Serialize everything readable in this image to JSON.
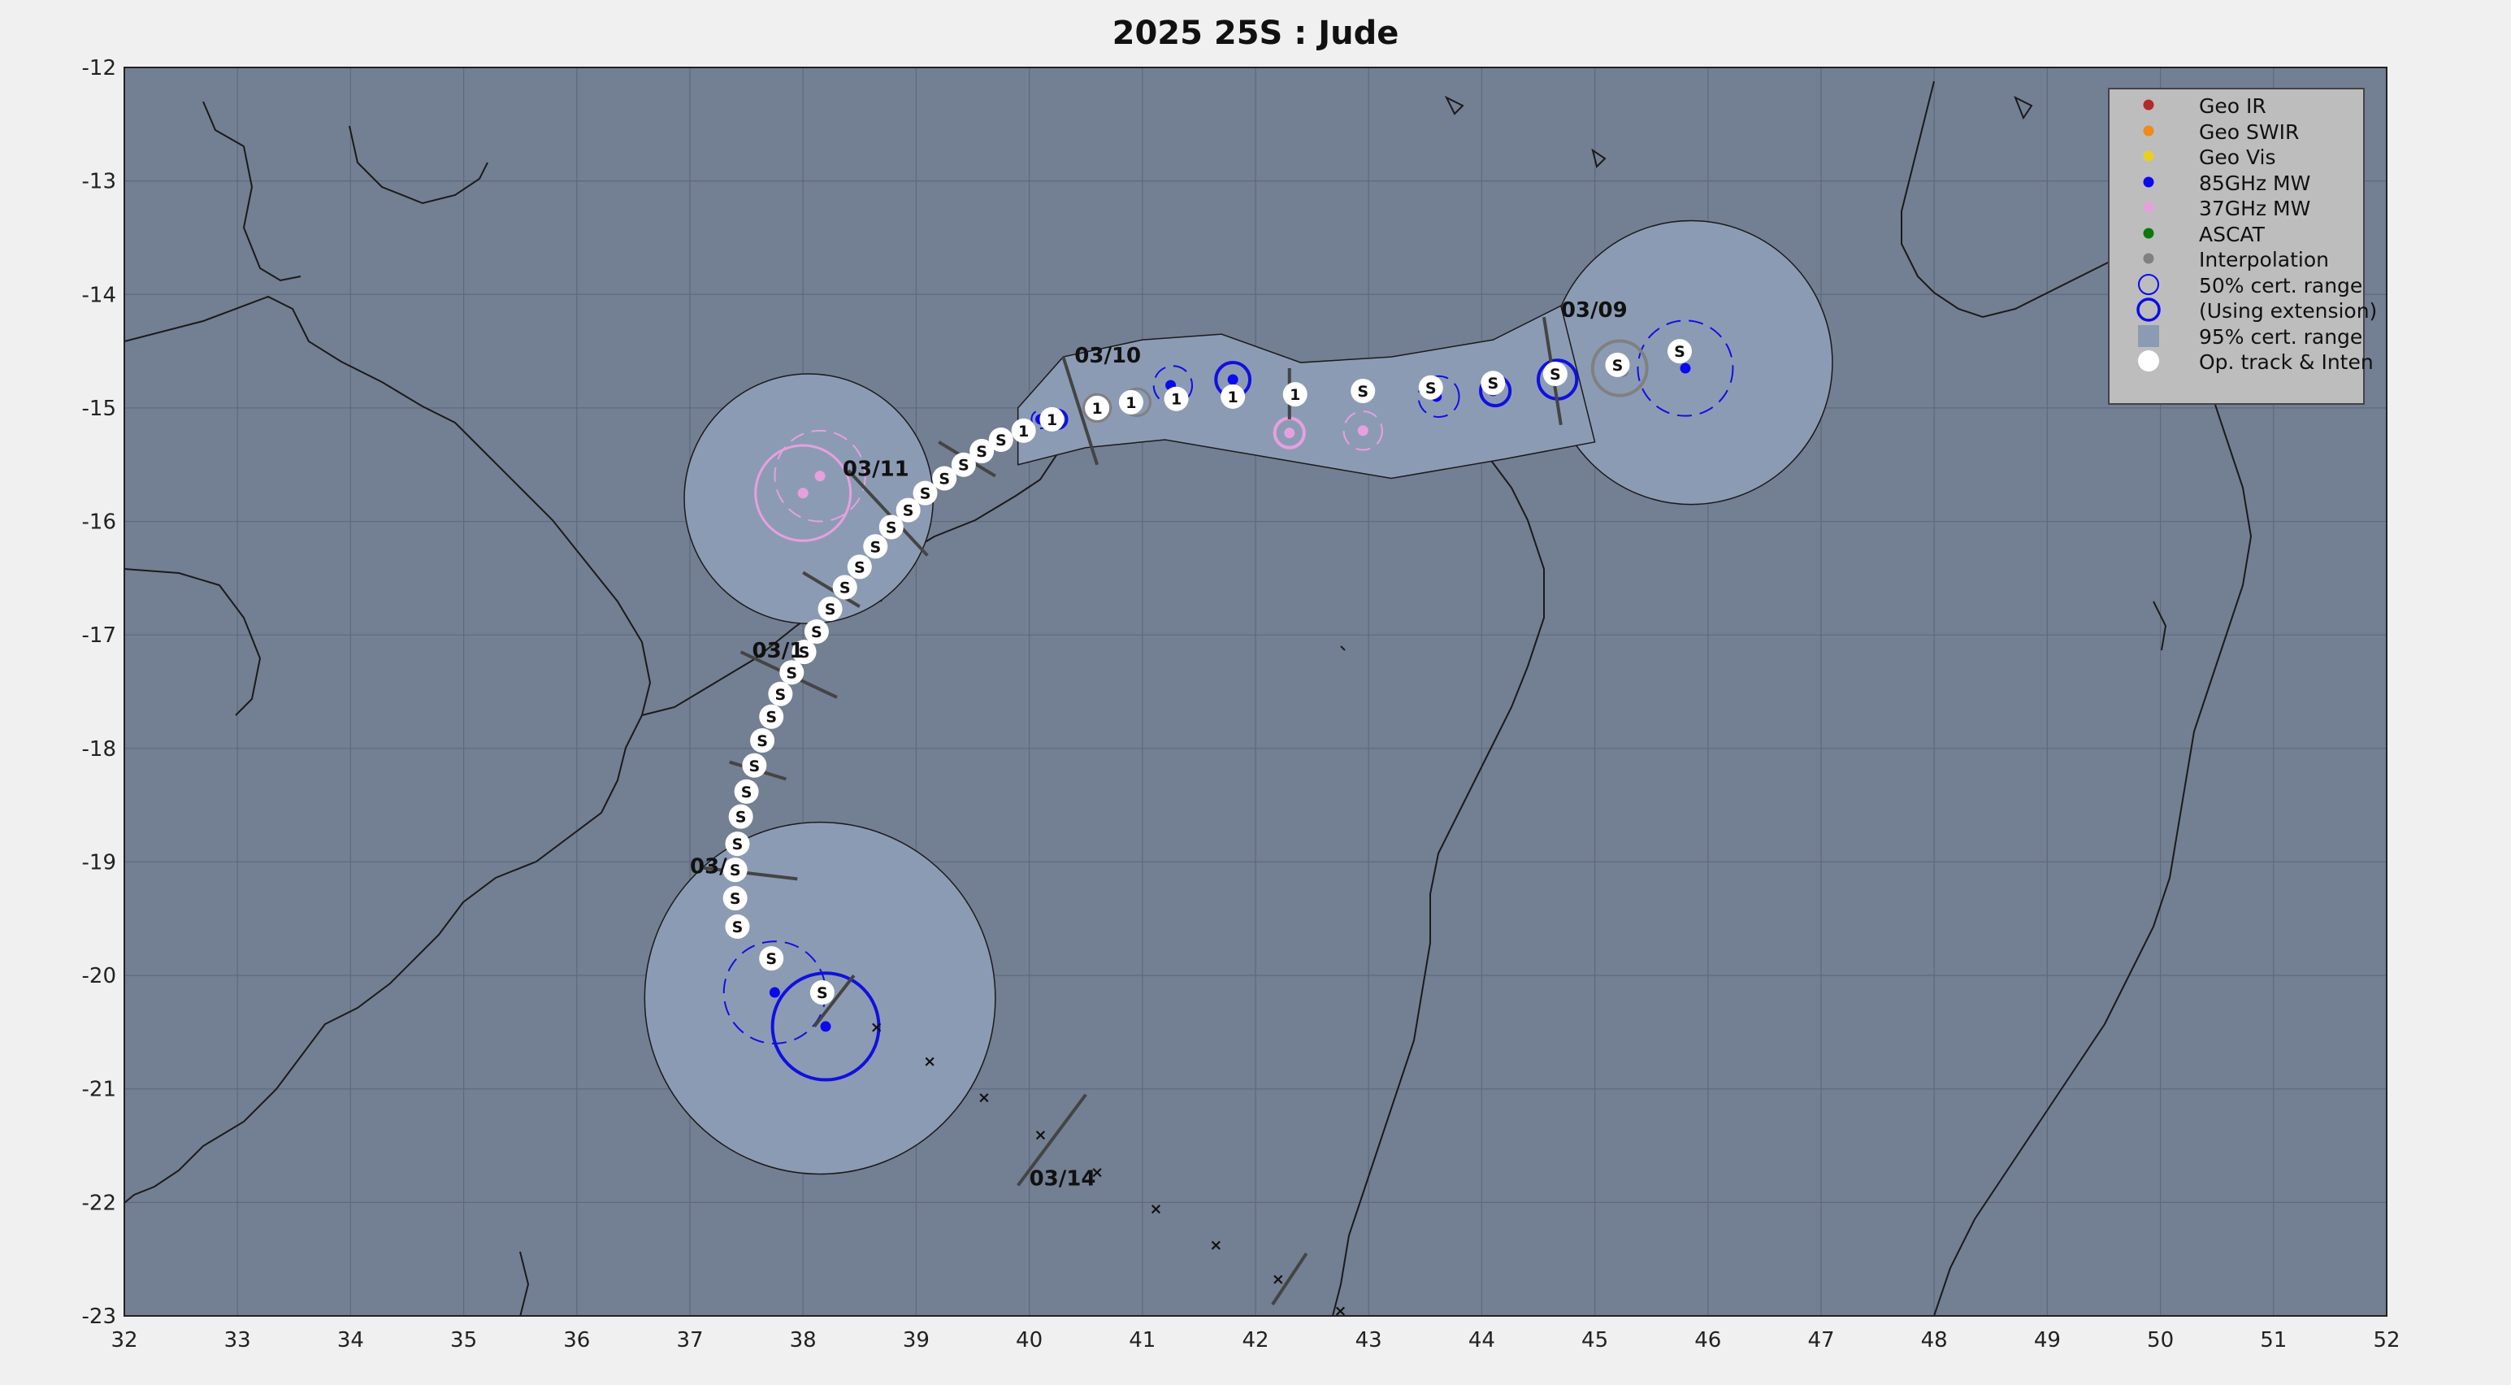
{
  "title": "2025  25S :  Jude",
  "map": {
    "lon_range": [
      32,
      52
    ],
    "lat_range": [
      -23,
      -12
    ],
    "lon_ticks": [
      "32",
      "33",
      "34",
      "35",
      "36",
      "37",
      "38",
      "39",
      "40",
      "41",
      "42",
      "43",
      "44",
      "45",
      "46",
      "47",
      "48",
      "49",
      "50",
      "51",
      "52"
    ],
    "lat_ticks": [
      "-12",
      "-13",
      "-14",
      "-15",
      "-16",
      "-17",
      "-18",
      "-19",
      "-20",
      "-21",
      "-22",
      "-23"
    ],
    "ocean_color": "#737f92",
    "cert95_color": "#8c9bb4"
  },
  "date_labels": [
    {
      "text": "03/09",
      "lon": 44.7,
      "lat": -14.2
    },
    {
      "text": "03/10",
      "lon": 40.4,
      "lat": -14.6
    },
    {
      "text": "03/11",
      "lon": 38.35,
      "lat": -15.6
    },
    {
      "text": "03/1",
      "lon": 37.55,
      "lat": -17.2
    },
    {
      "text": "03/",
      "lon": 37.0,
      "lat": -19.1
    },
    {
      "text": "03/14",
      "lon": 40.0,
      "lat": -21.85
    }
  ],
  "track": [
    {
      "lon": 45.75,
      "lat": -14.5,
      "s": "S"
    },
    {
      "lon": 45.2,
      "lat": -14.62,
      "s": "S"
    },
    {
      "lon": 44.65,
      "lat": -14.7,
      "s": "S"
    },
    {
      "lon": 44.1,
      "lat": -14.78,
      "s": "S"
    },
    {
      "lon": 43.55,
      "lat": -14.82,
      "s": "S"
    },
    {
      "lon": 42.95,
      "lat": -14.85,
      "s": "S"
    },
    {
      "lon": 42.35,
      "lat": -14.88,
      "s": "1"
    },
    {
      "lon": 41.8,
      "lat": -14.9,
      "s": "1"
    },
    {
      "lon": 41.3,
      "lat": -14.92,
      "s": "1"
    },
    {
      "lon": 40.9,
      "lat": -14.95,
      "s": "1"
    },
    {
      "lon": 40.6,
      "lat": -15.0,
      "s": "1"
    },
    {
      "lon": 40.2,
      "lat": -15.1,
      "s": "1"
    },
    {
      "lon": 39.95,
      "lat": -15.2,
      "s": "1"
    },
    {
      "lon": 39.75,
      "lat": -15.28,
      "s": "S"
    },
    {
      "lon": 39.58,
      "lat": -15.38,
      "s": "S"
    },
    {
      "lon": 39.42,
      "lat": -15.5,
      "s": "S"
    },
    {
      "lon": 39.25,
      "lat": -15.62,
      "s": "S"
    },
    {
      "lon": 39.08,
      "lat": -15.75,
      "s": "S"
    },
    {
      "lon": 38.93,
      "lat": -15.9,
      "s": "S"
    },
    {
      "lon": 38.78,
      "lat": -16.05,
      "s": "S"
    },
    {
      "lon": 38.64,
      "lat": -16.22,
      "s": "S"
    },
    {
      "lon": 38.5,
      "lat": -16.4,
      "s": "S"
    },
    {
      "lon": 38.37,
      "lat": -16.58,
      "s": "S"
    },
    {
      "lon": 38.24,
      "lat": -16.77,
      "s": "S"
    },
    {
      "lon": 38.12,
      "lat": -16.97,
      "s": "S"
    },
    {
      "lon": 38.01,
      "lat": -17.15,
      "s": "S"
    },
    {
      "lon": 37.9,
      "lat": -17.33,
      "s": "S"
    },
    {
      "lon": 37.8,
      "lat": -17.52,
      "s": "S"
    },
    {
      "lon": 37.72,
      "lat": -17.72,
      "s": "S"
    },
    {
      "lon": 37.64,
      "lat": -17.93,
      "s": "S"
    },
    {
      "lon": 37.57,
      "lat": -18.15,
      "s": "S"
    },
    {
      "lon": 37.5,
      "lat": -18.38,
      "s": "S"
    },
    {
      "lon": 37.45,
      "lat": -18.6,
      "s": "S"
    },
    {
      "lon": 37.42,
      "lat": -18.84,
      "s": "S"
    },
    {
      "lon": 37.4,
      "lat": -19.07,
      "s": "S"
    },
    {
      "lon": 37.4,
      "lat": -19.32,
      "s": "S"
    },
    {
      "lon": 37.42,
      "lat": -19.57,
      "s": "S"
    },
    {
      "lon": 37.72,
      "lat": -19.85,
      "s": "S"
    },
    {
      "lon": 38.17,
      "lat": -20.15,
      "s": "S"
    }
  ],
  "forecast_x": [
    {
      "lon": 38.65,
      "lat": -20.45
    },
    {
      "lon": 39.12,
      "lat": -20.75
    },
    {
      "lon": 39.6,
      "lat": -21.07
    },
    {
      "lon": 40.1,
      "lat": -21.4
    },
    {
      "lon": 40.6,
      "lat": -21.73
    },
    {
      "lon": 41.12,
      "lat": -22.05
    },
    {
      "lon": 41.65,
      "lat": -22.37
    },
    {
      "lon": 42.2,
      "lat": -22.67
    },
    {
      "lon": 42.75,
      "lat": -22.95
    }
  ],
  "fixes": [
    {
      "type": "85GHz MW",
      "lon": 45.8,
      "lat": -14.65
    },
    {
      "type": "85GHz MW",
      "lon": 44.65,
      "lat": -14.75
    },
    {
      "type": "85GHz MW",
      "lon": 44.1,
      "lat": -14.85
    },
    {
      "type": "85GHz MW",
      "lon": 43.6,
      "lat": -14.9
    },
    {
      "type": "85GHz MW",
      "lon": 41.8,
      "lat": -14.75
    },
    {
      "type": "85GHz MW",
      "lon": 41.25,
      "lat": -14.8
    },
    {
      "type": "85GHz MW",
      "lon": 40.25,
      "lat": -15.1
    },
    {
      "type": "85GHz MW",
      "lon": 40.1,
      "lat": -15.1
    },
    {
      "type": "85GHz MW",
      "lon": 37.75,
      "lat": -20.15
    },
    {
      "type": "85GHz MW",
      "lon": 38.2,
      "lat": -20.45
    },
    {
      "type": "37GHz MW",
      "lon": 42.3,
      "lat": -15.22
    },
    {
      "type": "37GHz MW",
      "lon": 42.95,
      "lat": -15.2
    },
    {
      "type": "37GHz MW",
      "lon": 38.15,
      "lat": -15.6
    },
    {
      "type": "37GHz MW",
      "lon": 38.0,
      "lat": -15.75
    },
    {
      "type": "Interpolation",
      "lon": 45.25,
      "lat": -14.68
    },
    {
      "type": "Interpolation",
      "lon": 40.95,
      "lat": -14.95
    },
    {
      "type": "Interpolation",
      "lon": 40.6,
      "lat": -15.0
    }
  ],
  "legend": {
    "items": [
      {
        "label": "Geo IR",
        "color": "#b52828",
        "symbol": "dot"
      },
      {
        "label": "Geo SWIR",
        "color": "#f08a18",
        "symbol": "dot"
      },
      {
        "label": "Geo Vis",
        "color": "#e8d020",
        "symbol": "dot"
      },
      {
        "label": "85GHz MW",
        "color": "#0a0aee",
        "symbol": "dot"
      },
      {
        "label": "37GHz MW",
        "color": "#e6a0e0",
        "symbol": "dot"
      },
      {
        "label": "ASCAT",
        "color": "#0a7a0a",
        "symbol": "dot"
      },
      {
        "label": "Interpolation",
        "color": "#808080",
        "symbol": "dot"
      },
      {
        "label": "50% cert. range",
        "color": "#0a0aee",
        "symbol": "ring"
      },
      {
        "label": "(Using extension)",
        "color": "#0a0aee",
        "symbol": "ring-bold"
      },
      {
        "label": "95% cert. range",
        "color": "#8c9bb4",
        "symbol": "square"
      },
      {
        "label": "Op. track & Inten",
        "color": "#ffffff",
        "symbol": "white-dot"
      }
    ]
  }
}
